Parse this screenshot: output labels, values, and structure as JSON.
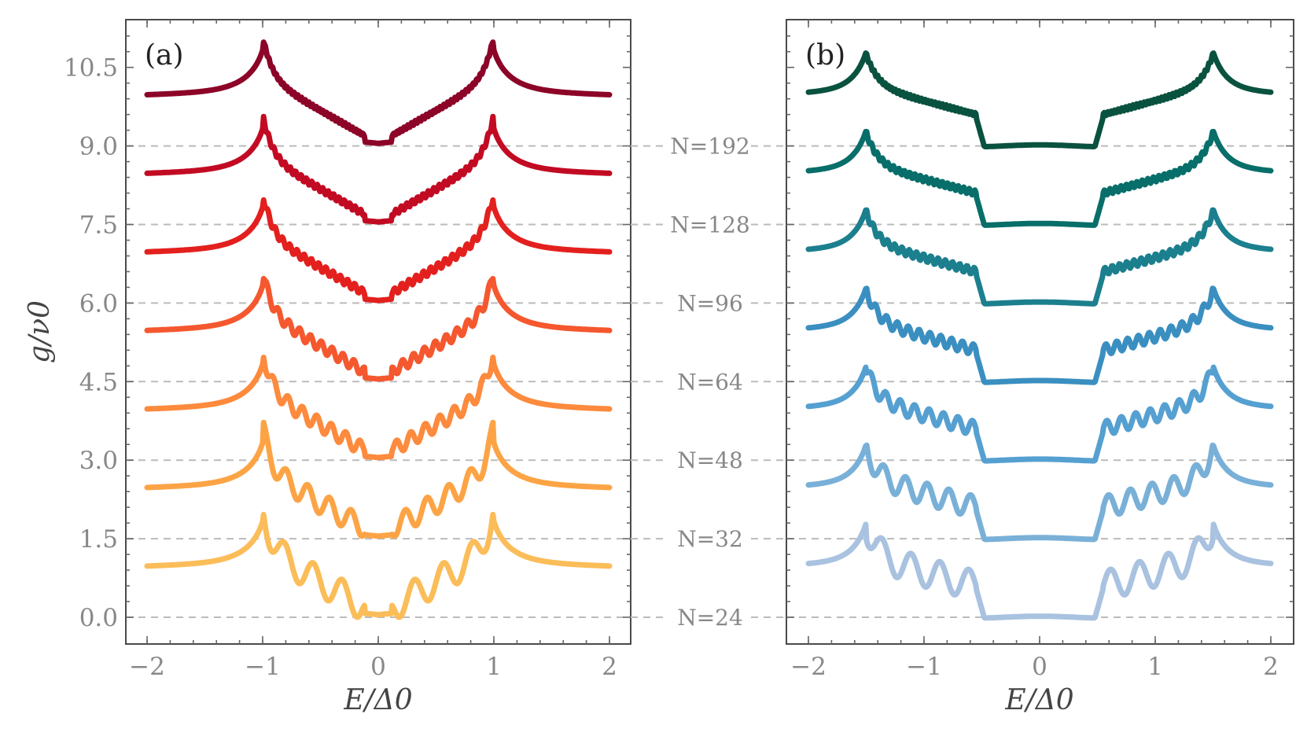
{
  "chart_data": [
    {
      "type": "line",
      "panel": "(a)",
      "xlabel": "E/Δ0",
      "ylabel": "g/ν0",
      "xlim": [
        -2.2,
        2.2
      ],
      "ylim": [
        -0.55,
        11.3
      ],
      "xticks": [
        -2,
        -1,
        0,
        1,
        2
      ],
      "xtick_labels": [
        "−2",
        "−1",
        "0",
        "1",
        "2"
      ],
      "yticks": [
        0.0,
        1.5,
        3.0,
        4.5,
        6.0,
        7.5,
        9.0,
        10.5
      ],
      "ytick_labels": [
        "0.0",
        "1.5",
        "3.0",
        "4.5",
        "6.0",
        "7.5",
        "9.0",
        "10.5"
      ],
      "gap_edge": 1.0,
      "offset_step": 1.5,
      "series": [
        {
          "name": "N=24",
          "N": 24,
          "offset": 0.0,
          "color": "#fbbd59"
        },
        {
          "name": "N=32",
          "N": 32,
          "offset": 1.5,
          "color": "#fca445"
        },
        {
          "name": "N=48",
          "N": 48,
          "offset": 3.0,
          "color": "#fd8a3d"
        },
        {
          "name": "N=64",
          "N": 64,
          "offset": 4.5,
          "color": "#f5572e"
        },
        {
          "name": "N=96",
          "N": 96,
          "offset": 6.0,
          "color": "#e3201e"
        },
        {
          "name": "N=128",
          "N": 128,
          "offset": 7.5,
          "color": "#c20b23"
        },
        {
          "name": "N=192",
          "N": 192,
          "offset": 9.0,
          "color": "#8c0428"
        }
      ]
    },
    {
      "type": "line",
      "panel": "(b)",
      "xlabel": "E/Δ0",
      "xlim": [
        -2.2,
        2.2
      ],
      "ylim": [
        -0.55,
        11.3
      ],
      "xticks": [
        -2,
        -1,
        0,
        1,
        2
      ],
      "xtick_labels": [
        "−2",
        "−1",
        "0",
        "1",
        "2"
      ],
      "gap_inner": 0.5,
      "gap_outer": 1.5,
      "offset_step": 1.5,
      "series": [
        {
          "name": "N=24",
          "N": 24,
          "offset": 0.0,
          "color": "#a9c2e0"
        },
        {
          "name": "N=32",
          "N": 32,
          "offset": 1.5,
          "color": "#79b0d8"
        },
        {
          "name": "N=48",
          "N": 48,
          "offset": 3.0,
          "color": "#55a0d1"
        },
        {
          "name": "N=64",
          "N": 64,
          "offset": 4.5,
          "color": "#3a8fc0"
        },
        {
          "name": "N=96",
          "N": 96,
          "offset": 6.0,
          "color": "#1c7f8e"
        },
        {
          "name": "N=128",
          "N": 128,
          "offset": 7.5,
          "color": "#086e6a"
        },
        {
          "name": "N=192",
          "N": 192,
          "offset": 9.0,
          "color": "#0a5240"
        }
      ]
    }
  ],
  "row_labels": [
    "N=24",
    "N=32",
    "N=48",
    "N=64",
    "N=96",
    "N=128",
    "N=192"
  ]
}
